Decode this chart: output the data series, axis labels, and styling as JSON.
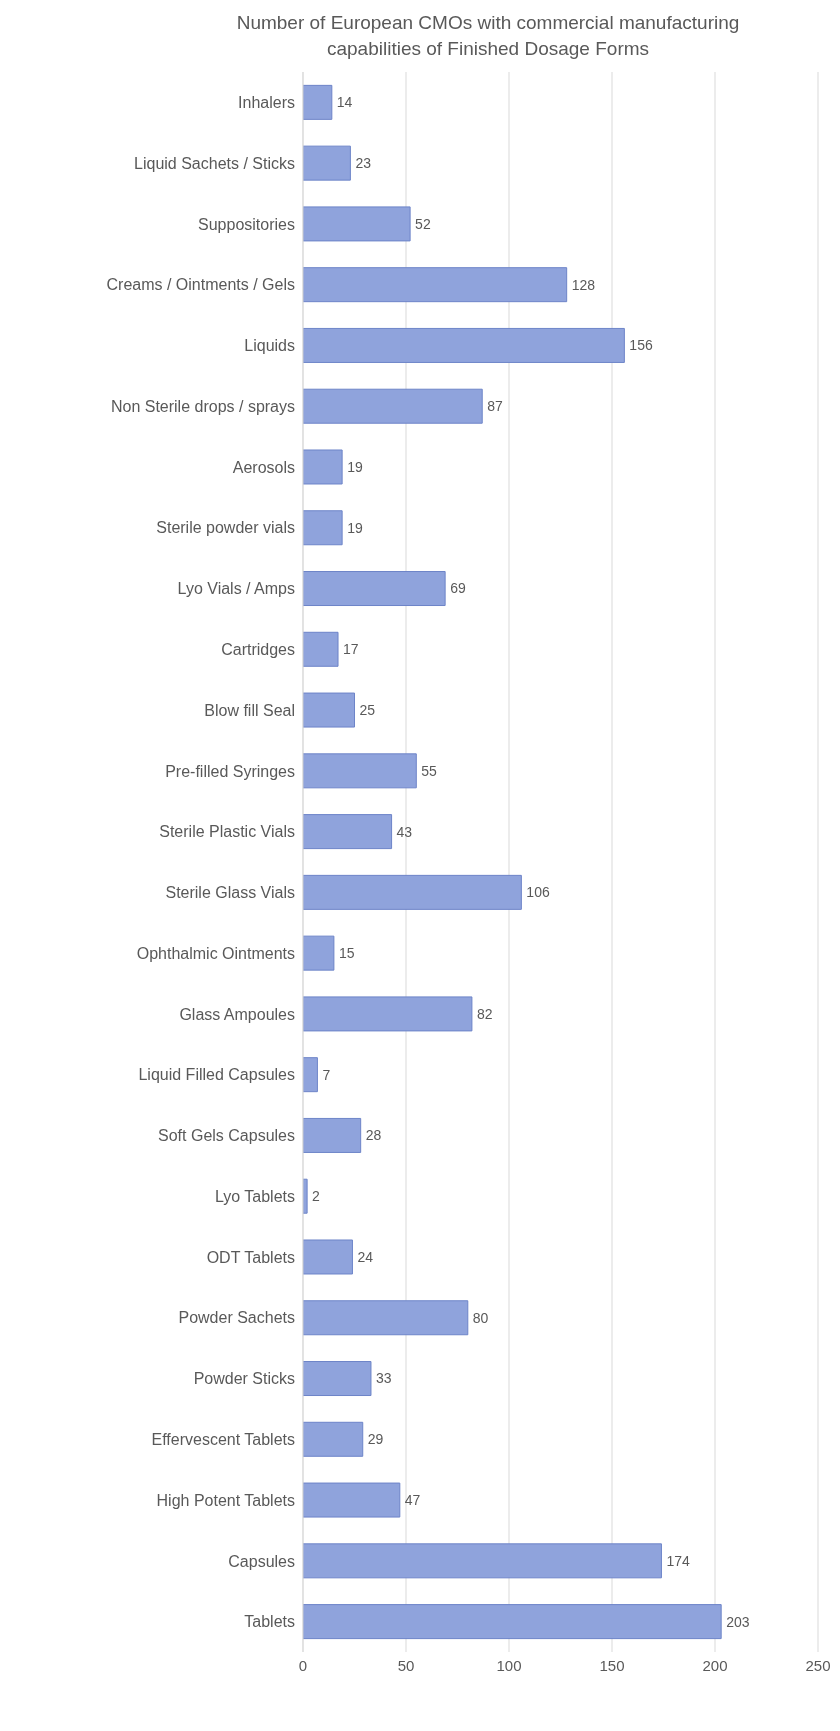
{
  "chart_data": {
    "type": "bar",
    "orientation": "horizontal",
    "title": "Number of European CMOs with commercial manufacturing capabilities of Finished Dosage Forms",
    "categories": [
      "Inhalers",
      "Liquid Sachets / Sticks",
      "Suppositories",
      "Creams / Ointments / Gels",
      "Liquids",
      "Non Sterile drops / sprays",
      "Aerosols",
      "Sterile powder vials",
      "Lyo Vials / Amps",
      "Cartridges",
      "Blow fill Seal",
      "Pre-filled Syringes",
      "Sterile Plastic Vials",
      "Sterile Glass Vials",
      "Ophthalmic Ointments",
      "Glass Ampoules",
      "Liquid Filled Capsules",
      "Soft Gels Capsules",
      "Lyo Tablets",
      "ODT Tablets",
      "Powder Sachets",
      "Powder Sticks",
      "Effervescent Tablets",
      "High Potent Tablets",
      "Capsules",
      "Tablets"
    ],
    "values": [
      14,
      23,
      52,
      128,
      156,
      87,
      19,
      19,
      69,
      17,
      25,
      55,
      43,
      106,
      15,
      82,
      7,
      28,
      2,
      24,
      80,
      33,
      29,
      47,
      174,
      203
    ],
    "color": "#8fa3dc",
    "xlim": [
      0,
      250
    ],
    "xticks": [
      0,
      50,
      100,
      150,
      200,
      250
    ],
    "grid": "x",
    "data_labels": true
  }
}
